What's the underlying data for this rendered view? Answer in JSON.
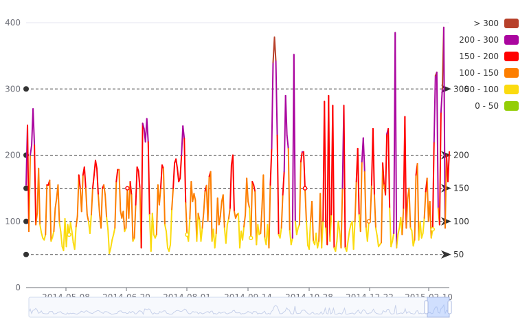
{
  "chart_data": {
    "type": "line",
    "x_tick_labels": [
      "2014-05-08",
      "2014-06-20",
      "2014-08-01",
      "2014-09-14",
      "2014-10-28",
      "2014-12-22",
      "2015-02-10"
    ],
    "y_tick_labels": [
      "0",
      "100",
      "200",
      "300",
      "400"
    ],
    "ylim": [
      0,
      400
    ],
    "x_range": [
      "2014-04-08",
      "2015-02-12"
    ],
    "grid": false,
    "legend_position": "top-right",
    "visual_map": [
      {
        "label": "> 300",
        "color": "#b7402a",
        "min": 300,
        "max": 1000
      },
      {
        "label": "200 - 300",
        "color": "#aa069f",
        "min": 200,
        "max": 300
      },
      {
        "label": "150 - 200",
        "color": "#ff0000",
        "min": 150,
        "max": 200
      },
      {
        "label": "100 - 150",
        "color": "#fd7e00",
        "min": 100,
        "max": 150
      },
      {
        "label": "50 - 100",
        "color": "#fbdb0f",
        "min": 50,
        "max": 100
      },
      {
        "label": "0 - 50",
        "color": "#93ce07",
        "min": 0,
        "max": 50
      }
    ],
    "mark_lines": [
      {
        "value": 50,
        "label": "50"
      },
      {
        "value": 100,
        "label": "100"
      },
      {
        "value": 150,
        "label": "150"
      },
      {
        "value": 200,
        "label": "200"
      },
      {
        "value": 300,
        "label": "300"
      }
    ],
    "series": [
      {
        "values": [
          155,
          245,
          85,
          200,
          215,
          270,
          215,
          95,
          112,
          180,
          95,
          83,
          75,
          72,
          80,
          155,
          155,
          162,
          70,
          76,
          85,
          120,
          135,
          155,
          98,
          84,
          62,
          56,
          104,
          62,
          95,
          80,
          98,
          85,
          68,
          58,
          92,
          108,
          170,
          150,
          115,
          170,
          182,
          150,
          110,
          100,
          82,
          110,
          150,
          170,
          192,
          180,
          140,
          110,
          90,
          150,
          155,
          140,
          106,
          88,
          52,
          60,
          72,
          80,
          90,
          160,
          178,
          178,
          116,
          105,
          115,
          85,
          90,
          150,
          105,
          160,
          140,
          70,
          75,
          125,
          182,
          176,
          150,
          60,
          248,
          240,
          220,
          255,
          220,
          110,
          55,
          112,
          80,
          75,
          80,
          155,
          125,
          150,
          185,
          180,
          95,
          85,
          60,
          55,
          65,
          118,
          150,
          188,
          194,
          180,
          160,
          165,
          200,
          244,
          225,
          128,
          80,
          70,
          104,
          160,
          130,
          142,
          132,
          70,
          112,
          102,
          70,
          90,
          114,
          146,
          154,
          100,
          168,
          175,
          70,
          88,
          60,
          82,
          135,
          95,
          108,
          130,
          140,
          90,
          67,
          95,
          104,
          120,
          185,
          200,
          115,
          105,
          110,
          112,
          60,
          85,
          72,
          92,
          110,
          165,
          130,
          120,
          75,
          160,
          155,
          145,
          65,
          95,
          80,
          82,
          120,
          170,
          75,
          65,
          95,
          60,
          155,
          210,
          340,
          378,
          342,
          230,
          80,
          75,
          90,
          140,
          175,
          290,
          230,
          210,
          86,
          65,
          75,
          352,
          100,
          80,
          90,
          95,
          190,
          205,
          205,
          150,
          100,
          64,
          58,
          100,
          130,
          70,
          65,
          82,
          60,
          70,
          142,
          60,
          100,
          281,
          90,
          65,
          290,
          70,
          110,
          275,
          60,
          55,
          70,
          100,
          85,
          60,
          150,
          275,
          60,
          55,
          70,
          85,
          95,
          100,
          58,
          100,
          160,
          210,
          110,
          85,
          190,
          226,
          175,
          90,
          70,
          100,
          103,
          155,
          240,
          140,
          90,
          78,
          62,
          65,
          68,
          188,
          155,
          140,
          232,
          240,
          120,
          62,
          70,
          82,
          385,
          60,
          80,
          90,
          106,
          80,
          120,
          258,
          90,
          135,
          150,
          90,
          86,
          63,
          72,
          170,
          187,
          72,
          100,
          75,
          82,
          105,
          145,
          165,
          100,
          130,
          75,
          88,
          220,
          320,
          325,
          120,
          95,
          265,
          300,
          393,
          90,
          200,
          160,
          205
        ]
      }
    ]
  }
}
